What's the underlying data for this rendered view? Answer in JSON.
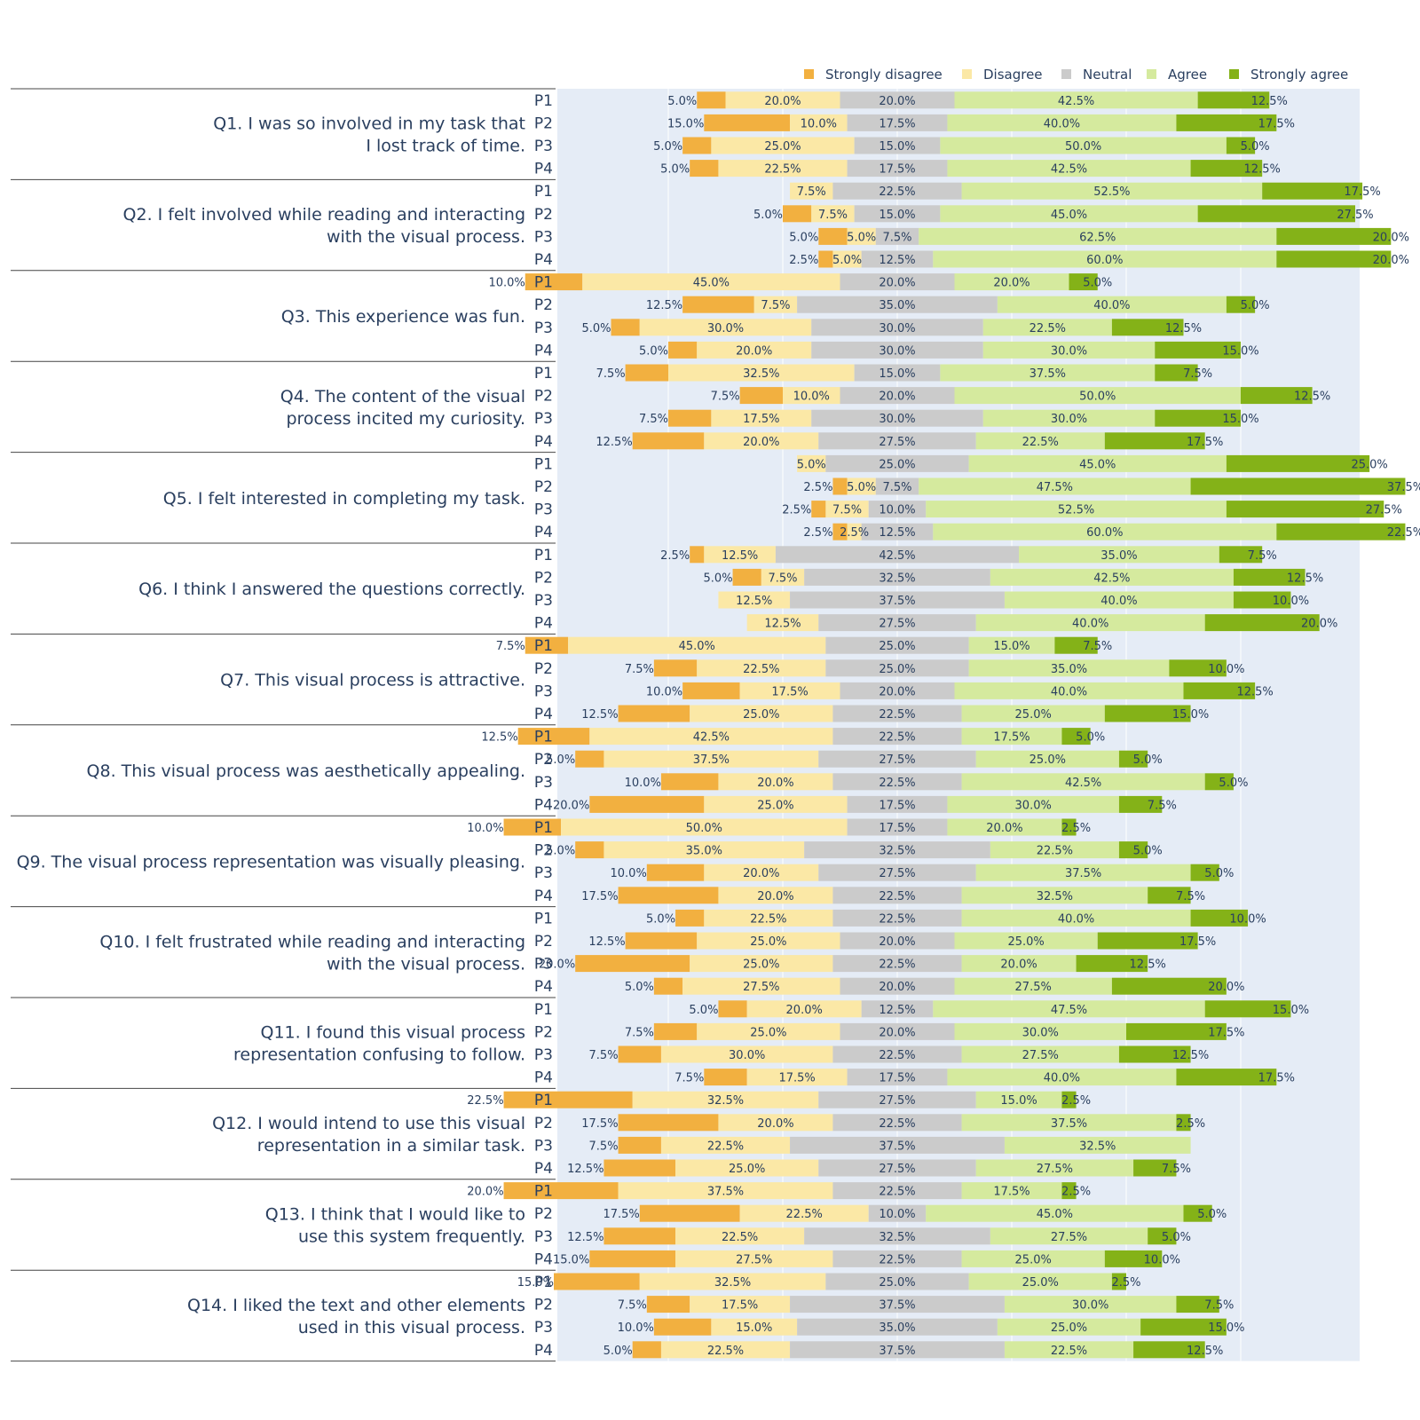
{
  "chart_data": {
    "type": "bar",
    "orientation": "horizontal",
    "stacking": "diverging",
    "legend_position": "top-right",
    "categories": [
      "Strongly disagree",
      "Disagree",
      "Neutral",
      "Agree",
      "Strongly agree"
    ],
    "colors": {
      "Strongly disagree": "#f2b040",
      "Disagree": "#fbe8a6",
      "Neutral": "#cbcbcb",
      "Agree": "#d5ea9e",
      "Strongly agree": "#84b218",
      "plot_background": "#e5ecf6",
      "grid": "#ffffff",
      "text": "#2a3f5f",
      "separator": "#444444"
    },
    "questions": [
      {
        "label": [
          "Q1. I was so involved in my task that",
          "I lost track of time."
        ],
        "rows": [
          {
            "p": "P1",
            "values": [
              5.0,
              20.0,
              20.0,
              42.5,
              12.5
            ]
          },
          {
            "p": "P2",
            "values": [
              15.0,
              10.0,
              17.5,
              40.0,
              17.5
            ]
          },
          {
            "p": "P3",
            "values": [
              5.0,
              25.0,
              15.0,
              50.0,
              5.0
            ]
          },
          {
            "p": "P4",
            "values": [
              5.0,
              22.5,
              17.5,
              42.5,
              12.5
            ]
          }
        ]
      },
      {
        "label": [
          "Q2. I felt involved while reading and interacting",
          "with the visual process."
        ],
        "rows": [
          {
            "p": "P1",
            "values": [
              0,
              7.5,
              22.5,
              52.5,
              17.5
            ]
          },
          {
            "p": "P2",
            "values": [
              5.0,
              7.5,
              15.0,
              45.0,
              27.5
            ]
          },
          {
            "p": "P3",
            "values": [
              5.0,
              5.0,
              7.5,
              62.5,
              20.0
            ]
          },
          {
            "p": "P4",
            "values": [
              2.5,
              5.0,
              12.5,
              60.0,
              20.0
            ]
          }
        ]
      },
      {
        "label": [
          "Q3. This experience was fun."
        ],
        "rows": [
          {
            "p": "P1",
            "values": [
              10.0,
              45.0,
              20.0,
              20.0,
              5.0
            ]
          },
          {
            "p": "P2",
            "values": [
              12.5,
              7.5,
              35.0,
              40.0,
              5.0
            ]
          },
          {
            "p": "P3",
            "values": [
              5.0,
              30.0,
              30.0,
              22.5,
              12.5
            ]
          },
          {
            "p": "P4",
            "values": [
              5.0,
              20.0,
              30.0,
              30.0,
              15.0
            ]
          }
        ]
      },
      {
        "label": [
          "Q4. The content of the visual",
          "process incited my curiosity."
        ],
        "rows": [
          {
            "p": "P1",
            "values": [
              7.5,
              32.5,
              15.0,
              37.5,
              7.5
            ]
          },
          {
            "p": "P2",
            "values": [
              7.5,
              10.0,
              20.0,
              50.0,
              12.5
            ]
          },
          {
            "p": "P3",
            "values": [
              7.5,
              17.5,
              30.0,
              30.0,
              15.0
            ]
          },
          {
            "p": "P4",
            "values": [
              12.5,
              20.0,
              27.5,
              22.5,
              17.5
            ]
          }
        ]
      },
      {
        "label": [
          "Q5. I felt interested in completing my task."
        ],
        "rows": [
          {
            "p": "P1",
            "values": [
              0,
              5.0,
              25.0,
              45.0,
              25.0
            ]
          },
          {
            "p": "P2",
            "values": [
              2.5,
              5.0,
              7.5,
              47.5,
              37.5
            ]
          },
          {
            "p": "P3",
            "values": [
              2.5,
              7.5,
              10.0,
              52.5,
              27.5
            ]
          },
          {
            "p": "P4",
            "values": [
              2.5,
              2.5,
              12.5,
              60.0,
              22.5
            ]
          }
        ]
      },
      {
        "label": [
          "Q6. I think I answered the questions correctly."
        ],
        "rows": [
          {
            "p": "P1",
            "values": [
              2.5,
              12.5,
              42.5,
              35.0,
              7.5
            ]
          },
          {
            "p": "P2",
            "values": [
              5.0,
              7.5,
              32.5,
              42.5,
              12.5
            ]
          },
          {
            "p": "P3",
            "values": [
              0,
              12.5,
              37.5,
              40.0,
              10.0
            ]
          },
          {
            "p": "P4",
            "values": [
              0,
              12.5,
              27.5,
              40.0,
              20.0
            ]
          }
        ]
      },
      {
        "label": [
          "Q7. This visual process is attractive."
        ],
        "rows": [
          {
            "p": "P1",
            "values": [
              7.5,
              45.0,
              25.0,
              15.0,
              7.5
            ]
          },
          {
            "p": "P2",
            "values": [
              7.5,
              22.5,
              25.0,
              35.0,
              10.0
            ]
          },
          {
            "p": "P3",
            "values": [
              10.0,
              17.5,
              20.0,
              40.0,
              12.5
            ]
          },
          {
            "p": "P4",
            "values": [
              12.5,
              25.0,
              22.5,
              25.0,
              15.0
            ]
          }
        ]
      },
      {
        "label": [
          "Q8. This visual process was aesthetically appealing."
        ],
        "rows": [
          {
            "p": "P1",
            "values": [
              12.5,
              42.5,
              22.5,
              17.5,
              5.0
            ]
          },
          {
            "p": "P2",
            "values": [
              5.0,
              37.5,
              27.5,
              25.0,
              5.0
            ]
          },
          {
            "p": "P3",
            "values": [
              10.0,
              20.0,
              22.5,
              42.5,
              5.0
            ]
          },
          {
            "p": "P4",
            "values": [
              20.0,
              25.0,
              17.5,
              30.0,
              7.5
            ]
          }
        ]
      },
      {
        "label": [
          "Q9. The visual process representation was visually pleasing."
        ],
        "rows": [
          {
            "p": "P1",
            "values": [
              10.0,
              50.0,
              17.5,
              20.0,
              2.5
            ]
          },
          {
            "p": "P2",
            "values": [
              5.0,
              35.0,
              32.5,
              22.5,
              5.0
            ]
          },
          {
            "p": "P3",
            "values": [
              10.0,
              20.0,
              27.5,
              37.5,
              5.0
            ]
          },
          {
            "p": "P4",
            "values": [
              17.5,
              20.0,
              22.5,
              32.5,
              7.5
            ]
          }
        ]
      },
      {
        "label": [
          "Q10. I felt frustrated while reading and interacting",
          "with the visual process."
        ],
        "rows": [
          {
            "p": "P1",
            "values": [
              5.0,
              22.5,
              22.5,
              40.0,
              10.0
            ]
          },
          {
            "p": "P2",
            "values": [
              12.5,
              25.0,
              20.0,
              25.0,
              17.5
            ]
          },
          {
            "p": "P3",
            "values": [
              20.0,
              25.0,
              22.5,
              20.0,
              12.5
            ]
          },
          {
            "p": "P4",
            "values": [
              5.0,
              27.5,
              20.0,
              27.5,
              20.0
            ]
          }
        ]
      },
      {
        "label": [
          "Q11. I found this visual process",
          "representation confusing to follow."
        ],
        "rows": [
          {
            "p": "P1",
            "values": [
              5.0,
              20.0,
              12.5,
              47.5,
              15.0
            ]
          },
          {
            "p": "P2",
            "values": [
              7.5,
              25.0,
              20.0,
              30.0,
              17.5
            ]
          },
          {
            "p": "P3",
            "values": [
              7.5,
              30.0,
              22.5,
              27.5,
              12.5
            ]
          },
          {
            "p": "P4",
            "values": [
              7.5,
              17.5,
              17.5,
              40.0,
              17.5
            ]
          }
        ]
      },
      {
        "label": [
          "Q12. I would intend to use this visual",
          "representation in a similar task."
        ],
        "rows": [
          {
            "p": "P1",
            "values": [
              22.5,
              32.5,
              27.5,
              15.0,
              2.5
            ]
          },
          {
            "p": "P2",
            "values": [
              17.5,
              20.0,
              22.5,
              37.5,
              2.5
            ]
          },
          {
            "p": "P3",
            "values": [
              7.5,
              22.5,
              37.5,
              32.5,
              0
            ]
          },
          {
            "p": "P4",
            "values": [
              12.5,
              25.0,
              27.5,
              27.5,
              7.5
            ]
          }
        ]
      },
      {
        "label": [
          "Q13. I think that I would like to",
          "use this system frequently."
        ],
        "rows": [
          {
            "p": "P1",
            "values": [
              20.0,
              37.5,
              22.5,
              17.5,
              2.5
            ]
          },
          {
            "p": "P2",
            "values": [
              17.5,
              22.5,
              10.0,
              45.0,
              5.0
            ]
          },
          {
            "p": "P3",
            "values": [
              12.5,
              22.5,
              32.5,
              27.5,
              5.0
            ]
          },
          {
            "p": "P4",
            "values": [
              15.0,
              27.5,
              22.5,
              25.0,
              10.0
            ]
          }
        ]
      },
      {
        "label": [
          "Q14. I liked the text and other elements",
          "used in this visual process."
        ],
        "rows": [
          {
            "p": "P1",
            "values": [
              15.0,
              32.5,
              25.0,
              25.0,
              2.5
            ]
          },
          {
            "p": "P2",
            "values": [
              7.5,
              17.5,
              37.5,
              30.0,
              7.5
            ]
          },
          {
            "p": "P3",
            "values": [
              10.0,
              15.0,
              35.0,
              25.0,
              15.0
            ]
          },
          {
            "p": "P4",
            "values": [
              5.0,
              22.5,
              37.5,
              22.5,
              12.5
            ]
          }
        ]
      }
    ]
  }
}
